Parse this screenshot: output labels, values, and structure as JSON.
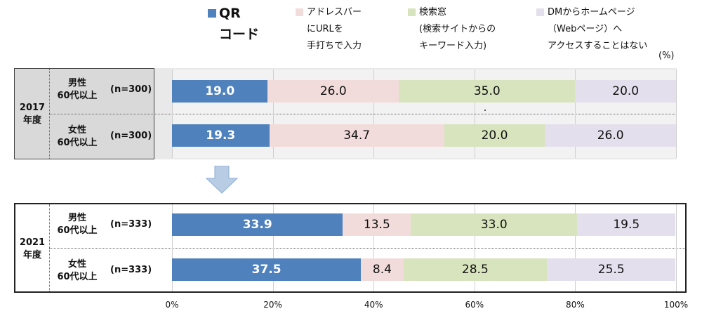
{
  "chart_data": {
    "type": "bar",
    "orientation": "horizontal",
    "stacked": true,
    "unit": "(%)",
    "xlim": [
      0,
      100
    ],
    "xticks": [
      "0%",
      "20%",
      "40%",
      "60%",
      "80%",
      "100%"
    ],
    "legend": [
      {
        "key": "qr",
        "lines": [
          "QR",
          "コード"
        ],
        "color": "#4f81bd"
      },
      {
        "key": "url",
        "lines": [
          "アドレスバー",
          "にURLを",
          "手打ちで入力"
        ],
        "color": "#f2dcdb"
      },
      {
        "key": "search",
        "lines": [
          "検索窓",
          "(検索サイトからの",
          "キーワード入力)"
        ],
        "color": "#d7e4bd"
      },
      {
        "key": "dm",
        "lines": [
          "DMからホームページ",
          "（Webページ）へ",
          "アクセスすることはない"
        ],
        "color": "#e4dfec"
      }
    ],
    "panels": [
      {
        "year_lines": [
          "2017",
          "年度"
        ],
        "groups": [
          {
            "name_lines": [
              "男性",
              "60代以上"
            ],
            "n": "(n=300)",
            "values": [
              19.0,
              26.0,
              35.0,
              20.0
            ],
            "labels": [
              "19.0",
              "26.0",
              "35.0",
              "20.0"
            ]
          },
          {
            "name_lines": [
              "女性",
              "60代以上"
            ],
            "n": "(n=300)",
            "values": [
              19.3,
              34.7,
              20.0,
              26.0
            ],
            "labels": [
              "19.3",
              "34.7",
              "20.0",
              "26.0"
            ]
          }
        ]
      },
      {
        "year_lines": [
          "2021",
          "年度"
        ],
        "groups": [
          {
            "name_lines": [
              "男性",
              "60代以上"
            ],
            "n": "(n=333)",
            "values": [
              33.9,
              13.5,
              33.0,
              19.5
            ],
            "labels": [
              "33.9",
              "13.5",
              "33.0",
              "19.5"
            ]
          },
          {
            "name_lines": [
              "女性",
              "60代以上"
            ],
            "n": "(n=333)",
            "values": [
              37.5,
              8.4,
              28.5,
              25.5
            ],
            "labels": [
              "37.5",
              "8.4",
              "28.5",
              "25.5"
            ]
          }
        ]
      }
    ]
  }
}
